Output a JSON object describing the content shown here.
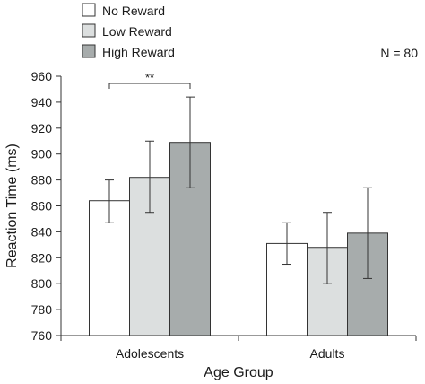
{
  "chart_data": {
    "type": "bar",
    "title": "",
    "xlabel": "Age Group",
    "ylabel": "Reaction Time (ms)",
    "ylim": [
      760,
      960
    ],
    "yticks": [
      760,
      780,
      800,
      820,
      840,
      860,
      880,
      900,
      920,
      940,
      960
    ],
    "categories": [
      "Adolescents",
      "Adults"
    ],
    "series": [
      {
        "name": "No Reward",
        "color": "#ffffff",
        "values": [
          864,
          831
        ],
        "error_low": [
          847,
          815
        ],
        "error_high": [
          880,
          847
        ]
      },
      {
        "name": "Low Reward",
        "color": "#dcdfdf",
        "values": [
          882,
          828
        ],
        "error_low": [
          855,
          800
        ],
        "error_high": [
          910,
          855
        ]
      },
      {
        "name": "High Reward",
        "color": "#a7acac",
        "values": [
          909,
          839
        ],
        "error_low": [
          874,
          804
        ],
        "error_high": [
          944,
          874
        ]
      }
    ],
    "legend_position": "top-left",
    "grid": false,
    "annotations": {
      "sample_size": "N = 80",
      "significance": {
        "label": "**",
        "category": "Adolescents",
        "between": [
          "No Reward",
          "High Reward"
        ]
      }
    }
  }
}
